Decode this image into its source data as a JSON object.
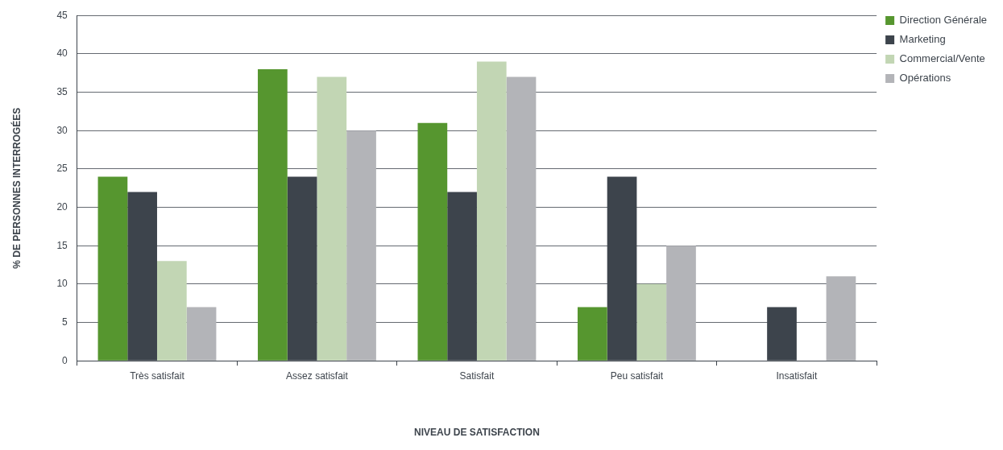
{
  "chart_data": {
    "type": "bar",
    "xlabel": "NIVEAU DE SATISFACTION",
    "ylabel": "% DE PERSONNES INTERROGÉES",
    "categories": [
      "Très satisfait",
      "Assez satisfait",
      "Satisfait",
      "Peu satisfait",
      "Insatisfait"
    ],
    "series": [
      {
        "name": "Direction Générale",
        "color": "#56962f",
        "values": [
          24,
          38,
          31,
          7,
          0
        ]
      },
      {
        "name": "Marketing",
        "color": "#3d444c",
        "values": [
          22,
          24,
          22,
          24,
          7
        ]
      },
      {
        "name": "Commercial/Vente",
        "color": "#c2d6b4",
        "values": [
          13,
          37,
          39,
          10,
          0
        ]
      },
      {
        "name": "Opérations",
        "color": "#b3b4b8",
        "values": [
          7,
          30,
          37,
          15,
          11
        ]
      }
    ],
    "ylim": [
      0,
      45
    ],
    "yticks": [
      0,
      5,
      10,
      15,
      20,
      25,
      30,
      35,
      40,
      45
    ],
    "grid": "y",
    "legend": "top right"
  }
}
